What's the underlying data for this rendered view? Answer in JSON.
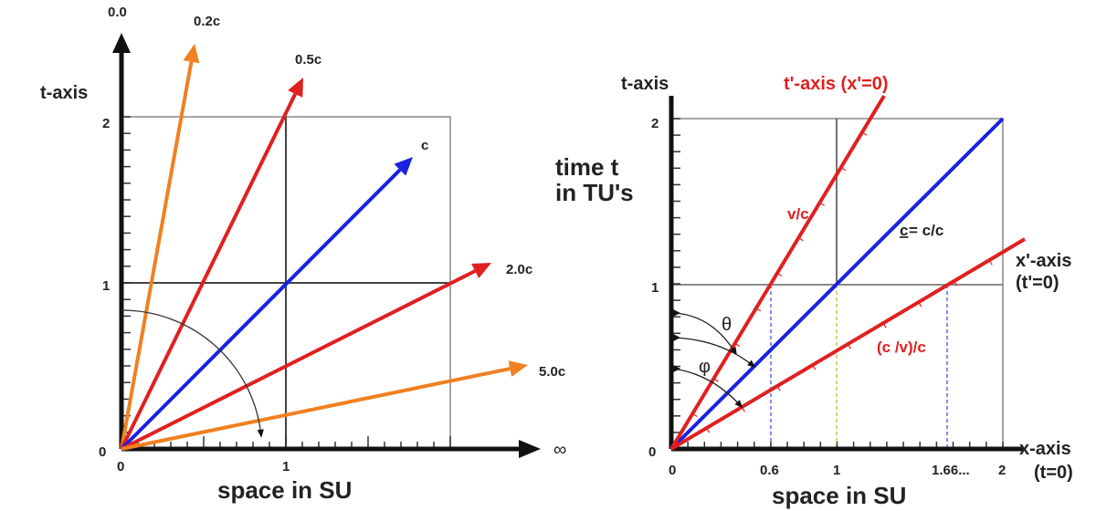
{
  "left_diagram": {
    "top_label": "0.0",
    "t_axis_label": "t-axis",
    "t_ticks": [
      "0",
      "1",
      "2"
    ],
    "x_ticks": [
      "0",
      "1"
    ],
    "x_axis_label": "space  in SU",
    "infinity_label": "∞",
    "worldlines": [
      {
        "label": "0.2c",
        "color": "#f08020"
      },
      {
        "label": "0.5c",
        "color": "#e02020"
      },
      {
        "label": "c",
        "color": "#1a22e0"
      },
      {
        "label": "2.0c",
        "color": "#e02020"
      },
      {
        "label": "5.0c",
        "color": "#f08020"
      }
    ]
  },
  "right_diagram": {
    "t_axis_label": "t-axis",
    "t_prime_axis_label": "t'-axis (x'=0)",
    "time_label_line1": "time t",
    "time_label_line2": "in TU's",
    "v_over_c_label": "v/c",
    "c_label_underlined": "c",
    "c_label_rest": " = c/c",
    "x_prime_axis_label_line1": "x'-axis",
    "x_prime_axis_label_line2": "(t'=0)",
    "cv_label": "(c /v)/c",
    "theta_label": "θ",
    "phi_label": "φ",
    "t_ticks": [
      "0",
      "1",
      "2"
    ],
    "x_ticks": [
      "0",
      "0.6",
      "1",
      "1.66...",
      "2"
    ],
    "x_axis_label_line1": "x-axis",
    "x_axis_label_line2": "(t=0)",
    "x_axis_title": "space  in SU",
    "colors": {
      "red": "#e02020",
      "blue": "#1a22e0",
      "dash_blue": "#3344ee",
      "dash_yellow": "#b8b820"
    }
  }
}
